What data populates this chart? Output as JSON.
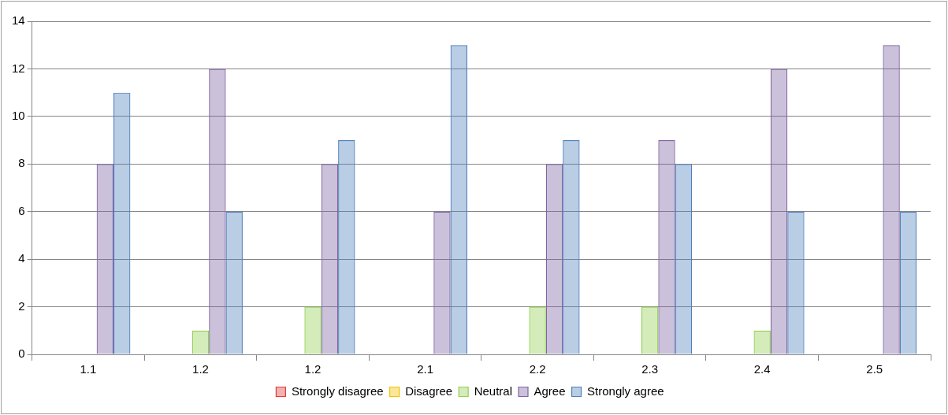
{
  "chart_data": {
    "type": "bar",
    "categories": [
      "1.1",
      "1.2",
      "1.2",
      "2.1",
      "2.2",
      "2.3",
      "2.4",
      "2.5"
    ],
    "series": [
      {
        "name": "Strongly disagree",
        "color": "#e03c3c",
        "values": [
          0,
          0,
          0,
          0,
          0,
          0,
          0,
          0
        ]
      },
      {
        "name": "Disagree",
        "color": "#f2c200",
        "values": [
          0,
          0,
          0,
          0,
          0,
          0,
          0,
          0
        ]
      },
      {
        "name": "Neutral",
        "color": "#92d050",
        "values": [
          0,
          1,
          2,
          0,
          2,
          2,
          1,
          0
        ]
      },
      {
        "name": "Agree",
        "color": "#8064a2",
        "values": [
          8,
          12,
          8,
          6,
          8,
          9,
          12,
          13
        ]
      },
      {
        "name": "Strongly agree",
        "color": "#4f81bd",
        "values": [
          11,
          6,
          9,
          13,
          9,
          8,
          6,
          6
        ]
      }
    ],
    "ylim": [
      0,
      14
    ],
    "yticks": [
      0,
      2,
      4,
      6,
      8,
      10,
      12,
      14
    ],
    "grid": "y",
    "legend": "bottom"
  }
}
